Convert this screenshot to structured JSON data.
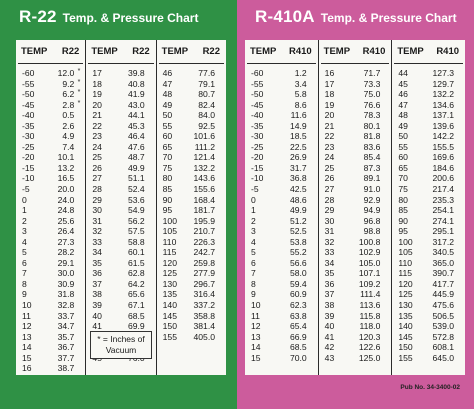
{
  "r22": {
    "title": "R-22",
    "subtitle": "Temp. & Pressure Chart",
    "temp_header": "TEMP",
    "press_header": "R22",
    "columns": [
      [
        [
          "-60",
          "12.0",
          "*"
        ],
        [
          "-55",
          "9.2",
          "*"
        ],
        [
          "-50",
          "6.2",
          "*"
        ],
        [
          "-45",
          "2.8",
          "*"
        ],
        [
          "-40",
          "0.5",
          ""
        ],
        [
          "-35",
          "2.6",
          ""
        ],
        [
          "-30",
          "4.9",
          ""
        ],
        [
          "-25",
          "7.4",
          ""
        ],
        [
          "-20",
          "10.1",
          ""
        ],
        [
          "-15",
          "13.2",
          ""
        ],
        [
          "-10",
          "16.5",
          ""
        ],
        [
          "-5",
          "20.0",
          ""
        ],
        [
          "0",
          "24.0",
          ""
        ],
        [
          "1",
          "24.8",
          ""
        ],
        [
          "2",
          "25.6",
          ""
        ],
        [
          "3",
          "26.4",
          ""
        ],
        [
          "4",
          "27.3",
          ""
        ],
        [
          "5",
          "28.2",
          ""
        ],
        [
          "6",
          "29.1",
          ""
        ],
        [
          "7",
          "30.0",
          ""
        ],
        [
          "8",
          "30.9",
          ""
        ],
        [
          "9",
          "31.8",
          ""
        ],
        [
          "10",
          "32.8",
          ""
        ],
        [
          "11",
          "33.7",
          ""
        ],
        [
          "12",
          "34.7",
          ""
        ],
        [
          "13",
          "35.7",
          ""
        ],
        [
          "14",
          "36.7",
          ""
        ],
        [
          "15",
          "37.7",
          ""
        ],
        [
          "16",
          "38.7",
          ""
        ]
      ],
      [
        [
          "17",
          "39.8",
          ""
        ],
        [
          "18",
          "40.8",
          ""
        ],
        [
          "19",
          "41.9",
          ""
        ],
        [
          "20",
          "43.0",
          ""
        ],
        [
          "21",
          "44.1",
          ""
        ],
        [
          "22",
          "45.3",
          ""
        ],
        [
          "23",
          "46.4",
          ""
        ],
        [
          "24",
          "47.6",
          ""
        ],
        [
          "25",
          "48.7",
          ""
        ],
        [
          "26",
          "49.9",
          ""
        ],
        [
          "27",
          "51.1",
          ""
        ],
        [
          "28",
          "52.4",
          ""
        ],
        [
          "29",
          "53.6",
          ""
        ],
        [
          "30",
          "54.9",
          ""
        ],
        [
          "31",
          "56.2",
          ""
        ],
        [
          "32",
          "57.5",
          ""
        ],
        [
          "33",
          "58.8",
          ""
        ],
        [
          "34",
          "60.1",
          ""
        ],
        [
          "35",
          "61.5",
          ""
        ],
        [
          "36",
          "62.8",
          ""
        ],
        [
          "37",
          "64.2",
          ""
        ],
        [
          "38",
          "65.6",
          ""
        ],
        [
          "39",
          "67.1",
          ""
        ],
        [
          "40",
          "68.5",
          ""
        ],
        [
          "41",
          "69.9",
          ""
        ],
        [
          "42",
          "71.4",
          ""
        ],
        [
          "43",
          "72.9",
          ""
        ],
        [
          "45",
          "76.0",
          ""
        ]
      ],
      [
        [
          "46",
          "77.6",
          ""
        ],
        [
          "47",
          "79.1",
          ""
        ],
        [
          "48",
          "80.7",
          ""
        ],
        [
          "49",
          "82.4",
          ""
        ],
        [
          "50",
          "84.0",
          ""
        ],
        [
          "55",
          "92.5",
          ""
        ],
        [
          "60",
          "101.6",
          ""
        ],
        [
          "65",
          "111.2",
          ""
        ],
        [
          "70",
          "121.4",
          ""
        ],
        [
          "75",
          "132.2",
          ""
        ],
        [
          "80",
          "143.6",
          ""
        ],
        [
          "85",
          "155.6",
          ""
        ],
        [
          "90",
          "168.4",
          ""
        ],
        [
          "95",
          "181.7",
          ""
        ],
        [
          "100",
          "195.9",
          ""
        ],
        [
          "105",
          "210.7",
          ""
        ],
        [
          "110",
          "226.3",
          ""
        ],
        [
          "115",
          "242.7",
          ""
        ],
        [
          "120",
          "259.8",
          ""
        ],
        [
          "125",
          "277.9",
          ""
        ],
        [
          "130",
          "296.7",
          ""
        ],
        [
          "135",
          "316.4",
          ""
        ],
        [
          "140",
          "337.2",
          ""
        ],
        [
          "145",
          "358.8",
          ""
        ],
        [
          "150",
          "381.4",
          ""
        ],
        [
          "155",
          "405.0",
          ""
        ]
      ]
    ],
    "note": "* = Inches of Vacuum"
  },
  "r410a": {
    "title": "R-410A",
    "subtitle": "Temp. & Pressure Chart",
    "temp_header": "TEMP",
    "press_header": "R410",
    "columns": [
      [
        [
          "-60",
          "1.2"
        ],
        [
          "-55",
          "3.4"
        ],
        [
          "-50",
          "5.8"
        ],
        [
          "-45",
          "8.6"
        ],
        [
          "-40",
          "11.6"
        ],
        [
          "-35",
          "14.9"
        ],
        [
          "-30",
          "18.5"
        ],
        [
          "-25",
          "22.5"
        ],
        [
          "-20",
          "26.9"
        ],
        [
          "-15",
          "31.7"
        ],
        [
          "-10",
          "36.8"
        ],
        [
          "-5",
          "42.5"
        ],
        [
          "0",
          "48.6"
        ],
        [
          "1",
          "49.9"
        ],
        [
          "2",
          "51.2"
        ],
        [
          "3",
          "52.5"
        ],
        [
          "4",
          "53.8"
        ],
        [
          "5",
          "55.2"
        ],
        [
          "6",
          "56.6"
        ],
        [
          "7",
          "58.0"
        ],
        [
          "8",
          "59.4"
        ],
        [
          "9",
          "60.9"
        ],
        [
          "10",
          "62.3"
        ],
        [
          "11",
          "63.8"
        ],
        [
          "12",
          "65.4"
        ],
        [
          "13",
          "66.9"
        ],
        [
          "14",
          "68.5"
        ],
        [
          "15",
          "70.0"
        ]
      ],
      [
        [
          "16",
          "71.7"
        ],
        [
          "17",
          "73.3"
        ],
        [
          "18",
          "75.0"
        ],
        [
          "19",
          "76.6"
        ],
        [
          "20",
          "78.3"
        ],
        [
          "21",
          "80.1"
        ],
        [
          "22",
          "81.8"
        ],
        [
          "23",
          "83.6"
        ],
        [
          "24",
          "85.4"
        ],
        [
          "25",
          "87.3"
        ],
        [
          "26",
          "89.1"
        ],
        [
          "27",
          "91.0"
        ],
        [
          "28",
          "92.9"
        ],
        [
          "29",
          "94.9"
        ],
        [
          "30",
          "96.8"
        ],
        [
          "31",
          "98.8"
        ],
        [
          "32",
          "100.8"
        ],
        [
          "33",
          "102.9"
        ],
        [
          "34",
          "105.0"
        ],
        [
          "35",
          "107.1"
        ],
        [
          "36",
          "109.2"
        ],
        [
          "37",
          "111.4"
        ],
        [
          "38",
          "113.6"
        ],
        [
          "39",
          "115.8"
        ],
        [
          "40",
          "118.0"
        ],
        [
          "41",
          "120.3"
        ],
        [
          "42",
          "122.6"
        ],
        [
          "43",
          "125.0"
        ]
      ],
      [
        [
          "44",
          "127.3"
        ],
        [
          "45",
          "129.7"
        ],
        [
          "46",
          "132.2"
        ],
        [
          "47",
          "134.6"
        ],
        [
          "48",
          "137.1"
        ],
        [
          "49",
          "139.6"
        ],
        [
          "50",
          "142.2"
        ],
        [
          "55",
          "155.5"
        ],
        [
          "60",
          "169.6"
        ],
        [
          "65",
          "184.6"
        ],
        [
          "70",
          "200.6"
        ],
        [
          "75",
          "217.4"
        ],
        [
          "80",
          "235.3"
        ],
        [
          "85",
          "254.1"
        ],
        [
          "90",
          "274.1"
        ],
        [
          "95",
          "295.1"
        ],
        [
          "100",
          "317.2"
        ],
        [
          "105",
          "340.5"
        ],
        [
          "110",
          "365.0"
        ],
        [
          "115",
          "390.7"
        ],
        [
          "120",
          "417.7"
        ],
        [
          "125",
          "445.9"
        ],
        [
          "130",
          "475.6"
        ],
        [
          "135",
          "506.5"
        ],
        [
          "140",
          "539.0"
        ],
        [
          "145",
          "572.8"
        ],
        [
          "150",
          "608.1"
        ],
        [
          "155",
          "645.0"
        ]
      ]
    ],
    "pub": "Pub No. 34-3400-02"
  }
}
